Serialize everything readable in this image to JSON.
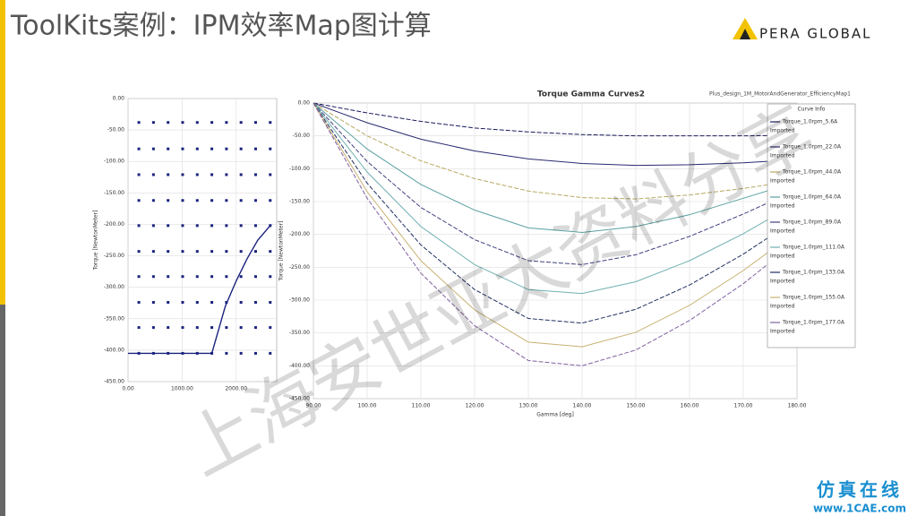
{
  "header": {
    "title": "ToolKits案例：IPM效率Map图计算",
    "logo": "PERA GLOBAL"
  },
  "watermark": {
    "main": "上海安世亚太资料分享",
    "site_name": "仿真在线",
    "site_url": "www.1CAE.com"
  },
  "chart_data": [
    {
      "type": "scatter",
      "ylabel": "Torque [NewtonMeter]",
      "xlim": [
        0,
        2750
      ],
      "ylim": [
        -450,
        0
      ],
      "xticks": [
        {
          "value": 0,
          "label": "0.00"
        },
        {
          "value": 1000,
          "label": "1000.00"
        },
        {
          "value": 2000,
          "label": "2000.00"
        }
      ],
      "yticks": [
        {
          "value": 0,
          "label": "0.00"
        },
        {
          "value": -50,
          "label": "-50.00"
        },
        {
          "value": -100,
          "label": "-100.00"
        },
        {
          "value": -150,
          "label": "-150.00"
        },
        {
          "value": -200,
          "label": "-200.00"
        },
        {
          "value": -250,
          "label": "-250.00"
        },
        {
          "value": -300,
          "label": "-300.00"
        },
        {
          "value": -350,
          "label": "-350.00"
        },
        {
          "value": -400,
          "label": "-400.00"
        },
        {
          "value": -450,
          "label": "-450.00"
        }
      ],
      "grid": true,
      "x": [
        200,
        470,
        740,
        1010,
        1280,
        1550,
        1820,
        2090,
        2360,
        2630
      ],
      "series": [
        {
          "color": "#1a237e",
          "values": [
            -38,
            -38,
            -38,
            -38,
            -38,
            -38,
            -38,
            -38,
            -38,
            -38
          ]
        },
        {
          "color": "#1a237e",
          "values": [
            -80,
            -80,
            -80,
            -80,
            -80,
            -80,
            -80,
            -80,
            -80,
            -80
          ]
        },
        {
          "color": "#1a237e",
          "values": [
            -121,
            -121,
            -121,
            -121,
            -121,
            -121,
            -121,
            -121,
            -121,
            -121
          ]
        },
        {
          "color": "#1a237e",
          "values": [
            -162,
            -162,
            -162,
            -162,
            -162,
            -162,
            -162,
            -162,
            -162,
            -162
          ]
        },
        {
          "color": "#1a237e",
          "values": [
            -202,
            -202,
            -202,
            -202,
            -202,
            -202,
            -202,
            -202,
            -202,
            -202
          ]
        },
        {
          "color": "#1a237e",
          "values": [
            -243,
            -243,
            -243,
            -243,
            -243,
            -243,
            -243,
            -243,
            -243,
            -243
          ]
        },
        {
          "color": "#1a237e",
          "values": [
            -283,
            -283,
            -283,
            -283,
            -283,
            -283,
            -283,
            -283,
            -283,
            -283
          ]
        },
        {
          "color": "#1a237e",
          "values": [
            -324,
            -324,
            -324,
            -324,
            -324,
            -324,
            -324,
            -324,
            -324,
            -324
          ]
        },
        {
          "color": "#1a237e",
          "values": [
            -364,
            -364,
            -364,
            -364,
            -364,
            -364,
            -364,
            -364,
            -364,
            -364
          ]
        },
        {
          "color": "#1a237e",
          "values": [
            -405,
            -405,
            -405,
            -405,
            -405,
            -405,
            -405,
            -405,
            -405,
            -405
          ]
        }
      ],
      "curve": {
        "color": "#1a237e",
        "x": [
          0,
          1550,
          1800,
          2000,
          2200,
          2400,
          2650
        ],
        "values": [
          -405,
          -405,
          -330,
          -290,
          -255,
          -225,
          -200
        ]
      }
    },
    {
      "type": "line",
      "title": "Torque Gamma Curves2",
      "subtitle": "Plus_design_1M_MotorAndGenerator_EfficiencyMap1",
      "xlabel": "Gamma [deg]",
      "ylabel": "Torque [NewtonMeter]",
      "legend_title": "Curve Info",
      "legend_note": "Imported",
      "xlim": [
        90,
        180
      ],
      "ylim": [
        -450,
        0
      ],
      "xticks": [
        {
          "value": 90,
          "label": "90.00"
        },
        {
          "value": 100,
          "label": "100.00"
        },
        {
          "value": 110,
          "label": "110.00"
        },
        {
          "value": 120,
          "label": "120.00"
        },
        {
          "value": 130,
          "label": "130.00"
        },
        {
          "value": 140,
          "label": "140.00"
        },
        {
          "value": 150,
          "label": "150.00"
        },
        {
          "value": 160,
          "label": "160.00"
        },
        {
          "value": 170,
          "label": "170.00"
        },
        {
          "value": 180,
          "label": "180.00"
        }
      ],
      "yticks": [
        {
          "value": 0,
          "label": "0.00"
        },
        {
          "value": -50,
          "label": "-50.00"
        },
        {
          "value": -100,
          "label": "-100.00"
        },
        {
          "value": -150,
          "label": "-150.00"
        },
        {
          "value": -200,
          "label": "-200.00"
        },
        {
          "value": -250,
          "label": "-250.00"
        },
        {
          "value": -300,
          "label": "-300.00"
        },
        {
          "value": -350,
          "label": "-350.00"
        },
        {
          "value": -400,
          "label": "-400.00"
        },
        {
          "value": -450,
          "label": "-450.00"
        }
      ],
      "grid": true,
      "x": [
        90,
        100,
        110,
        120,
        130,
        140,
        150,
        160,
        170,
        180
      ],
      "series": [
        {
          "name": "Torque_1.0rpm_5.6A",
          "color": "#1a1a5e",
          "values": [
            0,
            -15,
            -28,
            -38,
            -44,
            -48,
            -50,
            -50,
            -50,
            -49
          ]
        },
        {
          "name": "Torque_1.0rpm_22.0A",
          "color": "#2a2a70",
          "values": [
            0,
            -30,
            -55,
            -73,
            -85,
            -92,
            -95,
            -94,
            -91,
            -86
          ]
        },
        {
          "name": "Torque_1.0rpm_44.0A",
          "color": "#b8a860",
          "values": [
            0,
            -50,
            -88,
            -115,
            -134,
            -144,
            -146,
            -140,
            -130,
            -118
          ]
        },
        {
          "name": "Torque_1.0rpm_64.0A",
          "color": "#5aa0a0",
          "values": [
            0,
            -70,
            -124,
            -163,
            -190,
            -197,
            -188,
            -170,
            -145,
            -120
          ]
        },
        {
          "name": "Torque_1.0rpm_89.0A",
          "color": "#404080",
          "values": [
            0,
            -89,
            -159,
            -208,
            -240,
            -246,
            -231,
            -203,
            -169,
            -132
          ]
        },
        {
          "name": "Torque_1.0rpm_111.0A",
          "color": "#70b0b0",
          "values": [
            0,
            -105,
            -188,
            -246,
            -284,
            -290,
            -272,
            -240,
            -199,
            -152
          ]
        },
        {
          "name": "Torque_1.0rpm_133.0A",
          "color": "#203060",
          "values": [
            0,
            -122,
            -216,
            -284,
            -328,
            -335,
            -314,
            -277,
            -230,
            -176
          ]
        },
        {
          "name": "Torque_1.0rpm_155.0A",
          "color": "#c8b070",
          "values": [
            0,
            -135,
            -240,
            -315,
            -364,
            -371,
            -349,
            -308,
            -255,
            -195
          ]
        },
        {
          "name": "Torque_1.0rpm_177.0A",
          "color": "#8060a0",
          "values": [
            0,
            -145,
            -259,
            -339,
            -392,
            -400,
            -376,
            -331,
            -275,
            -210
          ]
        }
      ]
    }
  ]
}
